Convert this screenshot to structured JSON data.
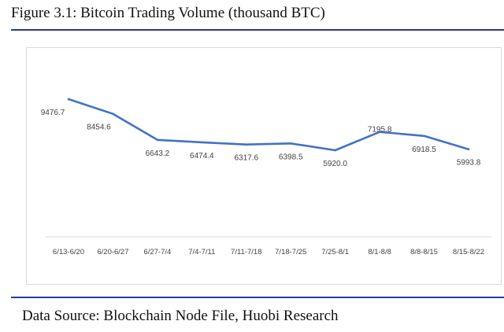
{
  "figure": {
    "title": "Figure  3.1: Bitcoin Trading Volume (thousand BTC)",
    "source": "Data Source: Blockchain Node File, Huobi Research",
    "line_color": "#4472C4",
    "rule_color": "#2a3b8f"
  },
  "chart_data": {
    "type": "line",
    "title": "Figure  3.1: Bitcoin Trading Volume (thousand BTC)",
    "xlabel": "",
    "ylabel": "",
    "categories": [
      "6/13-6/20",
      "6/20-6/27",
      "6/27-7/4",
      "7/4-7/11",
      "7/11-7/18",
      "7/18-7/25",
      "7/25-8/1",
      "8/1-8/8",
      "8/8-8/15",
      "8/15-8/22"
    ],
    "series": [
      {
        "values": [
          9476.7,
          8454.6,
          6643.2,
          6474.4,
          6317.6,
          6398.5,
          5920.0,
          7195.8,
          6918.5,
          5993.8
        ],
        "labels": [
          "9476.7",
          "8454.6",
          "6643.2",
          "6474.4",
          "6317.6",
          "6398.5",
          "5920.0",
          "7195.8",
          "6918.5",
          "5993.8"
        ]
      }
    ],
    "grid": false,
    "legend": "none"
  }
}
